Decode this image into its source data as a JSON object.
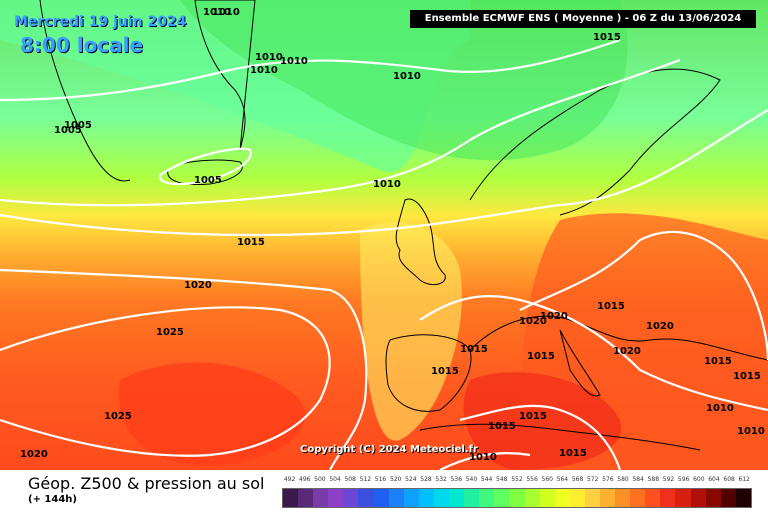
{
  "header": {
    "date": "Mercredi 19 juin 2024",
    "time": "8:00 locale",
    "model_run": "Ensemble ECMWF ENS  ( Moyenne )  -  06 Z du 13/06/2024"
  },
  "copyright": "Copyright (C) 2024 Meteociel.fr",
  "footer": {
    "title": "Géop. Z500 & pression au sol",
    "subtitle": "(+ 144h)"
  },
  "legend": {
    "ticks": [
      "492",
      "496",
      "500",
      "504",
      "508",
      "512",
      "516",
      "520",
      "524",
      "528",
      "532",
      "536",
      "540",
      "544",
      "548",
      "552",
      "556",
      "560",
      "564",
      "568",
      "572",
      "576",
      "580",
      "584",
      "588",
      "592",
      "596",
      "600",
      "604",
      "608",
      "612"
    ],
    "colors": [
      "#3a1a4a",
      "#5a2a78",
      "#7a3aa8",
      "#8c40c8",
      "#6d48d8",
      "#3c50e0",
      "#2060f0",
      "#1c80f8",
      "#10a0ff",
      "#00c0ff",
      "#00d8f0",
      "#00e8d0",
      "#20f0a0",
      "#40f880",
      "#60ff60",
      "#80ff40",
      "#a8ff30",
      "#d0ff20",
      "#f0ff20",
      "#ffee30",
      "#ffd040",
      "#ffb030",
      "#ff9028",
      "#ff7020",
      "#ff5020",
      "#f03018",
      "#d82010",
      "#b01008",
      "#880800",
      "#500000",
      "#200000"
    ]
  },
  "isobar_labels": [
    "1010",
    "1015",
    "1010",
    "1010",
    "1010",
    "1005",
    "1005",
    "1010",
    "1005",
    "1010",
    "1015",
    "1020",
    "1025",
    "1025",
    "1020",
    "1015",
    "1015",
    "1015",
    "1020",
    "1020",
    "1015",
    "1015",
    "1010",
    "1020",
    "1020",
    "1015",
    "1015",
    "1010",
    "1010",
    "1015",
    "1010",
    "1015"
  ]
}
